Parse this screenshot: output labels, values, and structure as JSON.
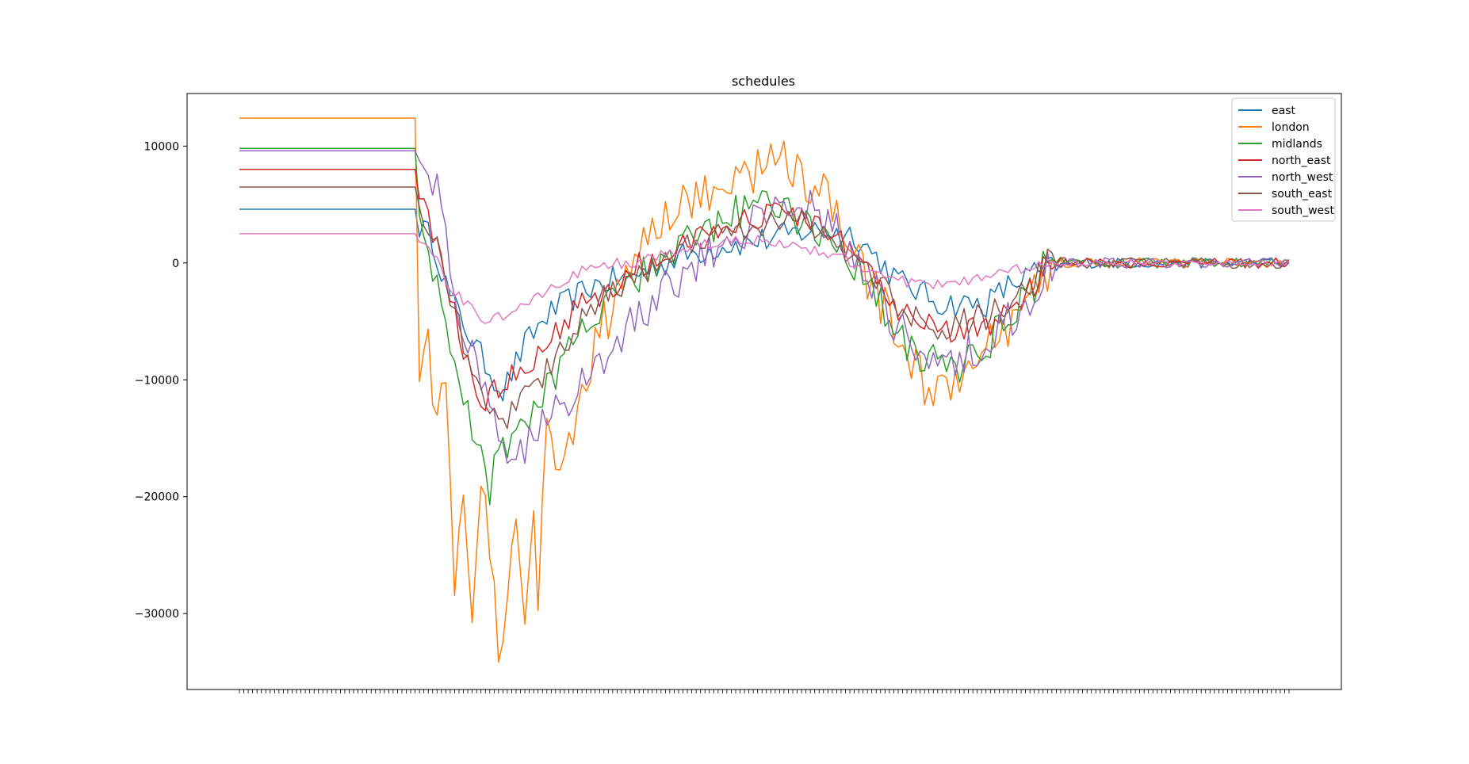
{
  "chart_data": {
    "type": "line",
    "title": "schedules",
    "xlabel": "",
    "ylabel": "",
    "ylim": [
      -36500,
      14500
    ],
    "yticks": [
      10000,
      0,
      -10000,
      -20000,
      -30000
    ],
    "ytick_labels": [
      "10000",
      "0",
      "−10000",
      "−20000",
      "−30000"
    ],
    "x_count": 240,
    "legend_position": "top-right",
    "grid": false,
    "series": [
      {
        "name": "east",
        "color": "#1f77b4",
        "start": 4600,
        "segments": [
          [
            0,
            4600
          ],
          [
            40,
            4600
          ],
          [
            41,
            3200
          ],
          [
            44,
            2000
          ],
          [
            48,
            -3000
          ],
          [
            55,
            -8000
          ],
          [
            60,
            -11000
          ],
          [
            65,
            -7000
          ],
          [
            70,
            -4500
          ],
          [
            80,
            -2000
          ],
          [
            90,
            -1000
          ],
          [
            100,
            500
          ],
          [
            110,
            1500
          ],
          [
            120,
            2000
          ],
          [
            130,
            2800
          ],
          [
            140,
            2500
          ],
          [
            150,
            -1500
          ],
          [
            160,
            -3500
          ],
          [
            170,
            -3500
          ],
          [
            175,
            -2000
          ],
          [
            180,
            -1000
          ],
          [
            185,
            -500
          ],
          [
            190,
            0
          ],
          [
            240,
            0
          ]
        ],
        "noise": 1200
      },
      {
        "name": "london",
        "color": "#ff7f0e",
        "start": 12400,
        "segments": [
          [
            0,
            12400
          ],
          [
            40,
            12400
          ],
          [
            41,
            -8800
          ],
          [
            43,
            -6000
          ],
          [
            45,
            -15000
          ],
          [
            47,
            -9500
          ],
          [
            49,
            -27500
          ],
          [
            51,
            -19000
          ],
          [
            53,
            -31500
          ],
          [
            55,
            -18500
          ],
          [
            57,
            -24000
          ],
          [
            59,
            -34300
          ],
          [
            61,
            -30500
          ],
          [
            63,
            -20000
          ],
          [
            65,
            -31800
          ],
          [
            67,
            -21500
          ],
          [
            68,
            -27800
          ],
          [
            70,
            -15000
          ],
          [
            74,
            -17800
          ],
          [
            78,
            -12000
          ],
          [
            82,
            -6000
          ],
          [
            86,
            -3000
          ],
          [
            90,
            1000
          ],
          [
            95,
            3500
          ],
          [
            100,
            5000
          ],
          [
            105,
            5500
          ],
          [
            110,
            6500
          ],
          [
            115,
            7500
          ],
          [
            120,
            8500
          ],
          [
            124,
            9000
          ],
          [
            128,
            7500
          ],
          [
            132,
            6500
          ],
          [
            136,
            3500
          ],
          [
            140,
            500
          ],
          [
            144,
            -2000
          ],
          [
            148,
            -4500
          ],
          [
            152,
            -7500
          ],
          [
            156,
            -10500
          ],
          [
            160,
            -11500
          ],
          [
            164,
            -10000
          ],
          [
            168,
            -9000
          ],
          [
            172,
            -6500
          ],
          [
            176,
            -5500
          ],
          [
            180,
            -3500
          ],
          [
            183,
            -1500
          ],
          [
            186,
            0
          ],
          [
            240,
            0
          ]
        ],
        "noise": 2000
      },
      {
        "name": "midlands",
        "color": "#2ca02c",
        "start": 9800,
        "segments": [
          [
            0,
            9800
          ],
          [
            40,
            9800
          ],
          [
            41,
            5000
          ],
          [
            43,
            2000
          ],
          [
            46,
            -5000
          ],
          [
            50,
            -10000
          ],
          [
            54,
            -15000
          ],
          [
            57,
            -19000
          ],
          [
            60,
            -16000
          ],
          [
            63,
            -13000
          ],
          [
            66,
            -14000
          ],
          [
            70,
            -10000
          ],
          [
            75,
            -8000
          ],
          [
            80,
            -5000
          ],
          [
            85,
            -3000
          ],
          [
            90,
            -1500
          ],
          [
            95,
            0
          ],
          [
            100,
            1000
          ],
          [
            105,
            2500
          ],
          [
            110,
            3500
          ],
          [
            115,
            4500
          ],
          [
            120,
            5500
          ],
          [
            125,
            4500
          ],
          [
            130,
            3500
          ],
          [
            135,
            2000
          ],
          [
            140,
            0
          ],
          [
            145,
            -3000
          ],
          [
            150,
            -6500
          ],
          [
            155,
            -8000
          ],
          [
            160,
            -9000
          ],
          [
            165,
            -8500
          ],
          [
            170,
            -7000
          ],
          [
            175,
            -5000
          ],
          [
            180,
            -2500
          ],
          [
            184,
            500
          ],
          [
            188,
            0
          ],
          [
            240,
            0
          ]
        ],
        "noise": 1700
      },
      {
        "name": "north_east",
        "color": "#d62728",
        "start": 8000,
        "segments": [
          [
            0,
            8000
          ],
          [
            40,
            8000
          ],
          [
            41,
            6000
          ],
          [
            44,
            2500
          ],
          [
            48,
            -3000
          ],
          [
            52,
            -9000
          ],
          [
            56,
            -12000
          ],
          [
            60,
            -10000
          ],
          [
            65,
            -9000
          ],
          [
            70,
            -7000
          ],
          [
            75,
            -4500
          ],
          [
            80,
            -3000
          ],
          [
            85,
            -2000
          ],
          [
            90,
            -500
          ],
          [
            95,
            500
          ],
          [
            100,
            1500
          ],
          [
            105,
            2500
          ],
          [
            110,
            3000
          ],
          [
            115,
            3500
          ],
          [
            120,
            4000
          ],
          [
            125,
            4200
          ],
          [
            130,
            3500
          ],
          [
            135,
            2500
          ],
          [
            140,
            500
          ],
          [
            145,
            -2000
          ],
          [
            150,
            -4000
          ],
          [
            155,
            -5000
          ],
          [
            160,
            -6000
          ],
          [
            165,
            -6000
          ],
          [
            170,
            -5500
          ],
          [
            175,
            -4500
          ],
          [
            180,
            -2500
          ],
          [
            184,
            0
          ],
          [
            240,
            0
          ]
        ],
        "noise": 1200
      },
      {
        "name": "north_west",
        "color": "#9467bd",
        "start": 9600,
        "segments": [
          [
            0,
            9600
          ],
          [
            40,
            9600
          ],
          [
            41,
            9300
          ],
          [
            43,
            7500
          ],
          [
            45,
            6000
          ],
          [
            47,
            1500
          ],
          [
            50,
            -4000
          ],
          [
            54,
            -9500
          ],
          [
            58,
            -14000
          ],
          [
            62,
            -16500
          ],
          [
            66,
            -15500
          ],
          [
            70,
            -12500
          ],
          [
            75,
            -11500
          ],
          [
            80,
            -10000
          ],
          [
            85,
            -7500
          ],
          [
            90,
            -5000
          ],
          [
            95,
            -3000
          ],
          [
            100,
            -1500
          ],
          [
            105,
            0
          ],
          [
            110,
            1500
          ],
          [
            115,
            3000
          ],
          [
            120,
            4500
          ],
          [
            125,
            5500
          ],
          [
            130,
            5000
          ],
          [
            135,
            3000
          ],
          [
            140,
            1000
          ],
          [
            145,
            -2500
          ],
          [
            150,
            -5500
          ],
          [
            155,
            -7500
          ],
          [
            160,
            -8000
          ],
          [
            165,
            -8000
          ],
          [
            170,
            -7000
          ],
          [
            175,
            -5000
          ],
          [
            180,
            -3000
          ],
          [
            184,
            0
          ],
          [
            240,
            0
          ]
        ],
        "noise": 1800
      },
      {
        "name": "south_east",
        "color": "#8c564b",
        "start": 6500,
        "segments": [
          [
            0,
            6500
          ],
          [
            40,
            6500
          ],
          [
            41,
            5000
          ],
          [
            44,
            2500
          ],
          [
            48,
            -3000
          ],
          [
            52,
            -8000
          ],
          [
            56,
            -12500
          ],
          [
            60,
            -14000
          ],
          [
            64,
            -12000
          ],
          [
            68,
            -10000
          ],
          [
            72,
            -8000
          ],
          [
            76,
            -6000
          ],
          [
            80,
            -4000
          ],
          [
            85,
            -2500
          ],
          [
            90,
            -1000
          ],
          [
            95,
            0
          ],
          [
            100,
            1000
          ],
          [
            105,
            2000
          ],
          [
            110,
            2500
          ],
          [
            115,
            3000
          ],
          [
            120,
            3500
          ],
          [
            125,
            3800
          ],
          [
            130,
            3200
          ],
          [
            135,
            2200
          ],
          [
            140,
            500
          ],
          [
            145,
            -1500
          ],
          [
            150,
            -3500
          ],
          [
            155,
            -5000
          ],
          [
            160,
            -5500
          ],
          [
            165,
            -5000
          ],
          [
            170,
            -4500
          ],
          [
            175,
            -3500
          ],
          [
            180,
            -2000
          ],
          [
            184,
            0
          ],
          [
            240,
            0
          ]
        ],
        "noise": 1200
      },
      {
        "name": "south_west",
        "color": "#e377c2",
        "start": 2500,
        "segments": [
          [
            0,
            2500
          ],
          [
            40,
            2500
          ],
          [
            41,
            1800
          ],
          [
            44,
            800
          ],
          [
            48,
            -2000
          ],
          [
            52,
            -3500
          ],
          [
            56,
            -5000
          ],
          [
            60,
            -4500
          ],
          [
            64,
            -4000
          ],
          [
            68,
            -3000
          ],
          [
            72,
            -2000
          ],
          [
            76,
            -1000
          ],
          [
            80,
            -500
          ],
          [
            85,
            0
          ],
          [
            90,
            0
          ],
          [
            95,
            500
          ],
          [
            100,
            1000
          ],
          [
            105,
            1500
          ],
          [
            110,
            1800
          ],
          [
            115,
            2000
          ],
          [
            120,
            1800
          ],
          [
            125,
            1500
          ],
          [
            130,
            1200
          ],
          [
            135,
            800
          ],
          [
            140,
            0
          ],
          [
            145,
            -800
          ],
          [
            150,
            -1500
          ],
          [
            155,
            -1800
          ],
          [
            160,
            -1800
          ],
          [
            165,
            -1500
          ],
          [
            170,
            -1200
          ],
          [
            175,
            -800
          ],
          [
            180,
            -400
          ],
          [
            184,
            0
          ],
          [
            240,
            0
          ]
        ],
        "noise": 500
      }
    ]
  }
}
